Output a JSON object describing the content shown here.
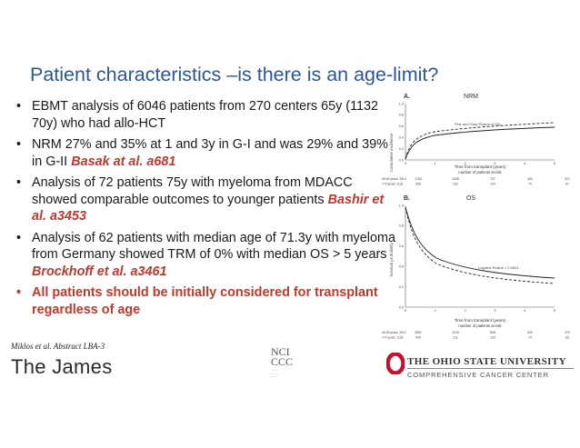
{
  "title": "Patient characteristics –is there is an age-limit?",
  "bullets": [
    {
      "text": "EBMT analysis of 6046 patients from 270 centers 65y (1132 70y) who had allo-HCT",
      "cite": ""
    },
    {
      "text": " NRM 27% and 35% at 1 and 3y in G-I and was 29% and 39% in G-II ",
      "cite": "Basak at al. a681"
    },
    {
      "text": "Analysis of 72 patients 75y with myeloma from MDACC showed comparable outcomes to younger patients ",
      "cite": "Bashir et al. a3453"
    },
    {
      "text": "Analysis of 62 patients with median age of 71.3y with myeloma from Germany showed TRM of 0% with median OS > 5 years ",
      "cite": "Brockhoff et al. a3461"
    },
    {
      "text": "All patients should be initially considered for transplant regardless of age",
      "cite": "",
      "emphasis": true
    }
  ],
  "bullet_symbol": "•",
  "footnote": "Miklos et al. Abstract LBA-3",
  "logos": {
    "james": "The James",
    "nccc_top": "NCI",
    "nccc_bottom": "CCC",
    "osu_name": "THE OHIO STATE UNIVERSITY",
    "osu_sub": "COMPREHENSIVE CANCER CENTER",
    "osu_color": "#c8102e"
  },
  "charts": {
    "panelA": {
      "label": "A.",
      "title": "NRM",
      "ylabel": "Cumulative incidence",
      "pvalue": "Fine and Gray Pvalue=0.001",
      "xlabel": "Time from transplant (years)",
      "risk_label": "number of patients at-risk",
      "xticks": [
        "0",
        "1",
        "2",
        "3",
        "4",
        "5"
      ],
      "yticks": [
        "0.0",
        "0.2",
        "0.4",
        "0.6",
        "0.8",
        "1.0"
      ],
      "risk_rows": [
        {
          "label": "65-69 years: 4914",
          "values": [
            "1780",
            "1058",
            "707",
            "460",
            "321"
          ]
        },
        {
          "label": ">70 years: 1132",
          "values": [
            "335",
            "192",
            "120",
            "70",
            "57"
          ]
        }
      ]
    },
    "panelB": {
      "label": "B.",
      "title": "OS",
      "ylabel": "Survival probability",
      "pvalue": "Logrank Pvalue < 0.0001",
      "xlabel": "Time from transplant (years)",
      "risk_label": "number of patients at-risk",
      "xticks": [
        "0",
        "1",
        "2",
        "3",
        "4",
        "5"
      ],
      "yticks": [
        "0.0",
        "0.2",
        "0.4",
        "0.6",
        "0.8",
        "1.0"
      ],
      "risk_rows": [
        {
          "label": "65-69 years: 4914",
          "values": [
            "2851",
            "1216",
            "808",
            "539",
            "370"
          ]
        },
        {
          "label": ">70 years: 1132",
          "values": [
            "409",
            "211",
            "120",
            "70",
            "63"
          ]
        }
      ]
    }
  }
}
